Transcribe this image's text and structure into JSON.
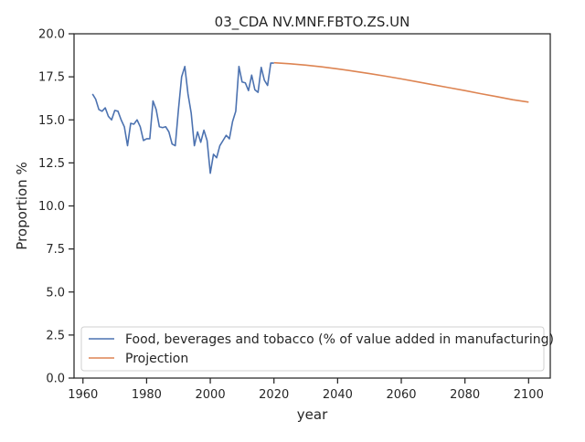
{
  "chart_data": {
    "type": "line",
    "title": "03_CDA NV.MNF.FBTO.ZS.UN",
    "xlabel": "year",
    "ylabel": "Proportion %",
    "xlim": [
      1957.2,
      2106.8
    ],
    "ylim": [
      0,
      20
    ],
    "xticks": [
      1960,
      1980,
      2000,
      2020,
      2040,
      2060,
      2080,
      2100
    ],
    "xtick_labels": [
      "1960",
      "1980",
      "2000",
      "2020",
      "2040",
      "2060",
      "2080",
      "2100"
    ],
    "yticks": [
      0,
      2.5,
      5,
      7.5,
      10,
      12.5,
      15,
      17.5,
      20
    ],
    "ytick_labels": [
      "0.0",
      "2.5",
      "5.0",
      "7.5",
      "10.0",
      "12.5",
      "15.0",
      "17.5",
      "20.0"
    ],
    "grid": false,
    "legend_position": "lower-left",
    "series": [
      {
        "name": "Food, beverages and tobacco (% of value added in manufacturing)",
        "color": "#4c72b0",
        "x": [
          1963,
          1964,
          1965,
          1966,
          1967,
          1968,
          1969,
          1970,
          1971,
          1972,
          1973,
          1974,
          1975,
          1976,
          1977,
          1978,
          1979,
          1980,
          1981,
          1982,
          1983,
          1984,
          1985,
          1986,
          1987,
          1988,
          1989,
          1990,
          1991,
          1992,
          1993,
          1994,
          1995,
          1996,
          1997,
          1998,
          1999,
          2000,
          2001,
          2002,
          2003,
          2004,
          2005,
          2006,
          2007,
          2008,
          2009,
          2010,
          2011,
          2012,
          2013,
          2014,
          2015,
          2016,
          2017,
          2018,
          2019,
          2020
        ],
        "y": [
          16.5,
          16.2,
          15.6,
          15.5,
          15.7,
          15.2,
          15.0,
          15.55,
          15.5,
          15.0,
          14.6,
          13.5,
          14.8,
          14.75,
          15.0,
          14.6,
          13.8,
          13.9,
          13.9,
          16.1,
          15.6,
          14.6,
          14.55,
          14.6,
          14.3,
          13.6,
          13.5,
          15.6,
          17.5,
          18.1,
          16.5,
          15.4,
          13.5,
          14.3,
          13.7,
          14.4,
          13.8,
          11.9,
          13.0,
          12.8,
          13.5,
          13.8,
          14.1,
          13.9,
          14.9,
          15.5,
          18.1,
          17.2,
          17.15,
          16.7,
          17.6,
          16.75,
          16.6,
          18.05,
          17.3,
          17.0,
          18.3,
          18.3
        ]
      },
      {
        "name": "Projection",
        "color": "#dd8452",
        "x": [
          2020,
          2025,
          2030,
          2035,
          2040,
          2045,
          2050,
          2055,
          2060,
          2065,
          2070,
          2075,
          2080,
          2085,
          2090,
          2095,
          2100
        ],
        "y": [
          18.32,
          18.26,
          18.18,
          18.08,
          17.96,
          17.83,
          17.69,
          17.54,
          17.38,
          17.21,
          17.04,
          16.87,
          16.7,
          16.52,
          16.35,
          16.17,
          16.03
        ]
      }
    ]
  }
}
